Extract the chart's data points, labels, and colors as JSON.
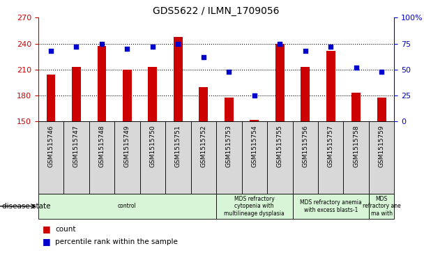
{
  "title": "GDS5622 / ILMN_1709056",
  "samples": [
    "GSM1515746",
    "GSM1515747",
    "GSM1515748",
    "GSM1515749",
    "GSM1515750",
    "GSM1515751",
    "GSM1515752",
    "GSM1515753",
    "GSM1515754",
    "GSM1515755",
    "GSM1515756",
    "GSM1515757",
    "GSM1515758",
    "GSM1515759"
  ],
  "count_values": [
    204,
    213,
    237,
    210,
    213,
    248,
    190,
    178,
    152,
    240,
    213,
    232,
    183,
    178
  ],
  "percentile_values": [
    68,
    72,
    75,
    70,
    72,
    75,
    62,
    48,
    25,
    75,
    68,
    72,
    52,
    48
  ],
  "ylim_left": [
    150,
    270
  ],
  "ylim_right": [
    0,
    100
  ],
  "yticks_left": [
    150,
    180,
    210,
    240,
    270
  ],
  "yticks_right": [
    0,
    25,
    50,
    75,
    100
  ],
  "bar_color": "#cc0000",
  "dot_color": "#0000cc",
  "bar_bottom": 150,
  "bg_color": "#ffffff",
  "plot_bg": "#ffffff",
  "tick_bg": "#d8d8d8",
  "left_axis_color": "#cc0000",
  "right_axis_color": "#0000cc",
  "legend_count_label": "count",
  "legend_pct_label": "percentile rank within the sample",
  "disease_state_label": "disease state",
  "disease_groups": [
    {
      "label": "control",
      "start": 0,
      "end": 7,
      "color": "#d8f5d8"
    },
    {
      "label": "MDS refractory\ncytopenia with\nmultilineage dysplasia",
      "start": 7,
      "end": 10,
      "color": "#d8f5d8"
    },
    {
      "label": "MDS refractory anemia\nwith excess blasts-1",
      "start": 10,
      "end": 13,
      "color": "#d8f5d8"
    },
    {
      "label": "MDS\nrefractory ane\nma with",
      "start": 13,
      "end": 14,
      "color": "#d8f5d8"
    }
  ]
}
